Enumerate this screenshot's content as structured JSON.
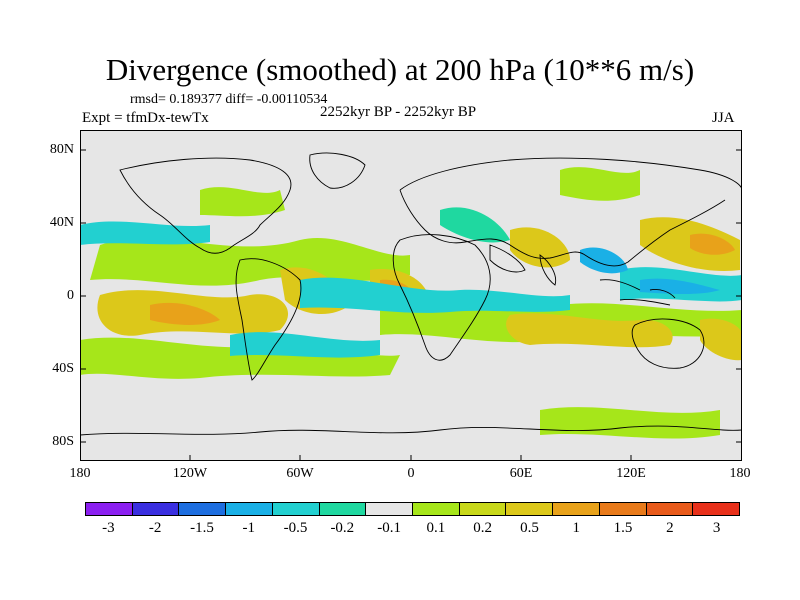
{
  "title": "Divergence (smoothed) at 200 hPa (10**6 m/s)",
  "stats_line": "rmsd= 0.189377 diff= -0.00110534",
  "experiment": "Expt = tfmDx-tewTx",
  "period": "2252kyr BP - 2252kyr BP",
  "season": "JJA",
  "lat_labels": [
    "80N",
    "40N",
    "0",
    "40S",
    "80S"
  ],
  "lon_labels": [
    "180",
    "120W",
    "60W",
    "0",
    "60E",
    "120E",
    "180"
  ],
  "colorbar": {
    "colors": [
      "#8b1ff0",
      "#3a2fe0",
      "#1d6ee0",
      "#1ab0e6",
      "#22d0d0",
      "#1fd8a0",
      "#e6e6e6",
      "#a6e61a",
      "#c8d81a",
      "#dcc81a",
      "#e8a21a",
      "#e87a1a",
      "#e85a1a",
      "#e8301a"
    ],
    "labels": [
      "-3",
      "-2",
      "-1.5",
      "-1",
      "-0.5",
      "-0.2",
      "-0.1",
      "0.1",
      "0.2",
      "0.5",
      "1",
      "1.5",
      "2",
      "3"
    ]
  },
  "colors": {
    "ocean_bg": "#e6e6e6",
    "coast": "#000000"
  }
}
